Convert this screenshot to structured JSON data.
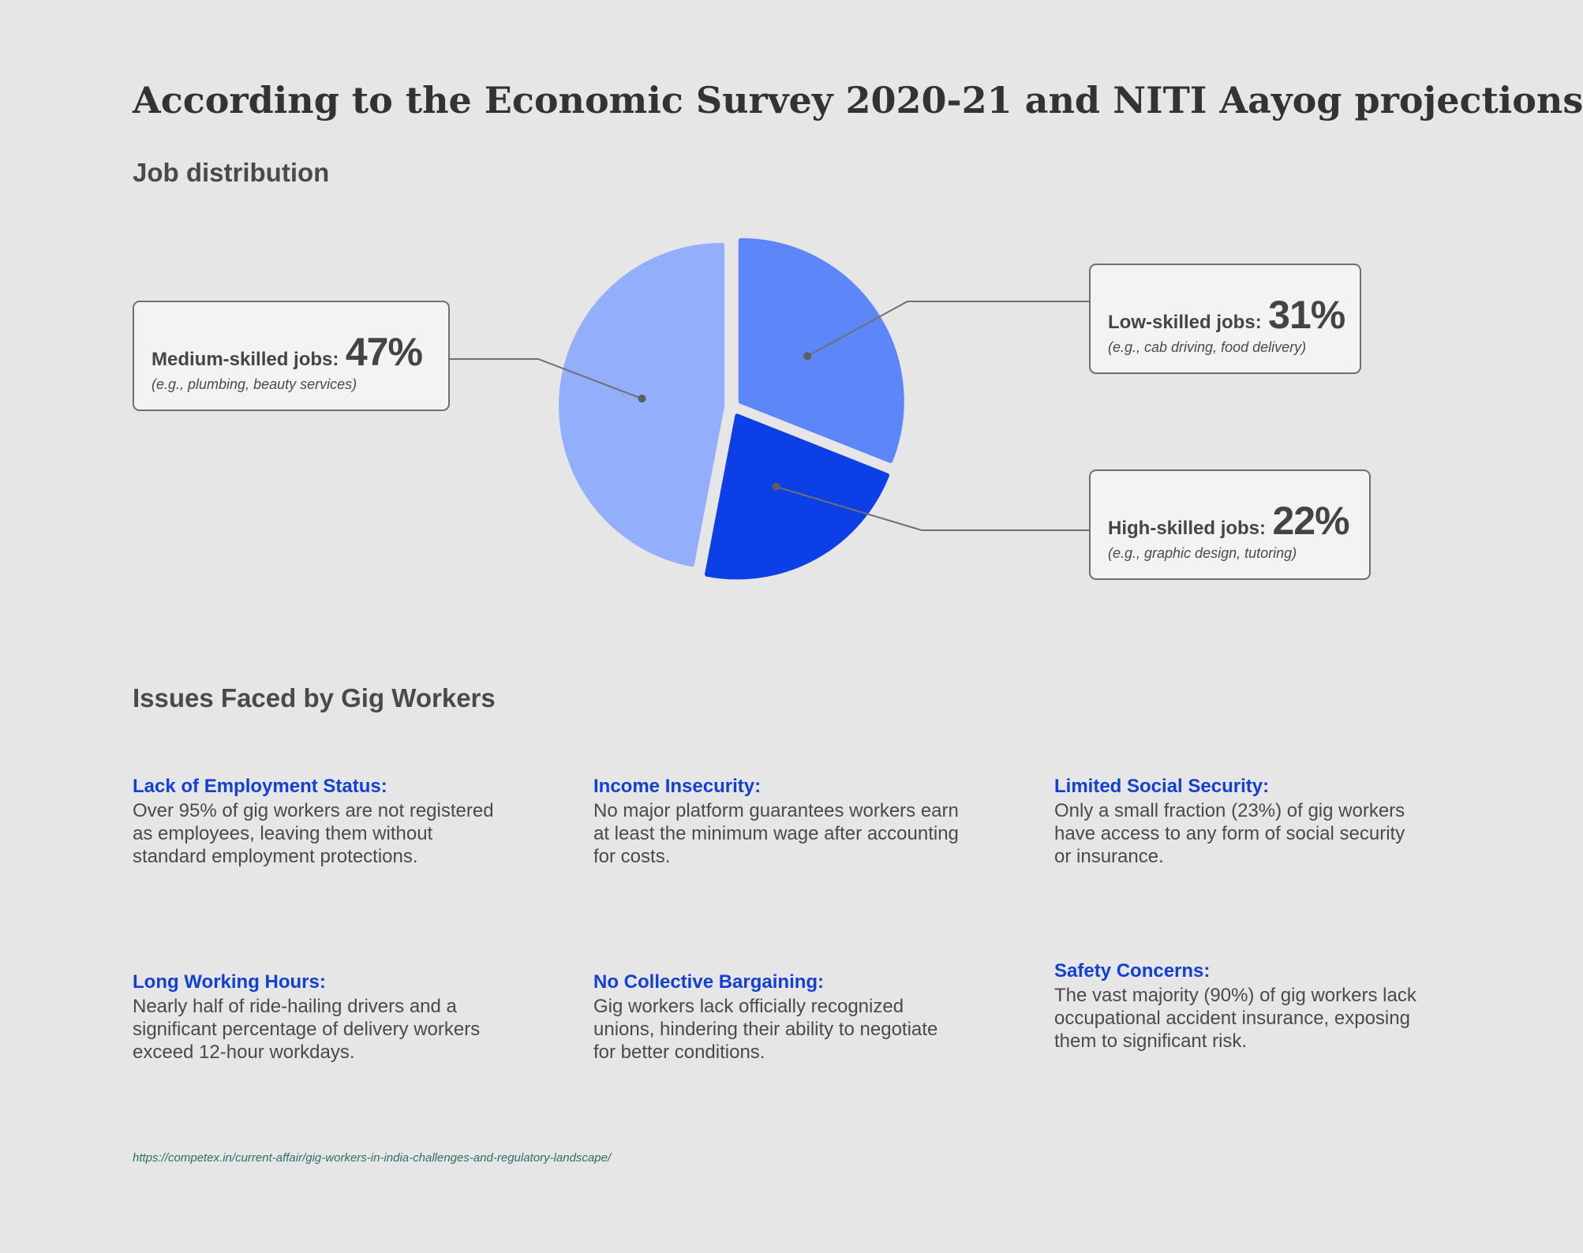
{
  "page_title": "According to the Economic Survey 2020-21 and NITI Aayog projections",
  "colors": {
    "background": "#e6e6e6",
    "heading_blue": "#1340d4",
    "medium": "#93aefa",
    "low": "#5d87f8",
    "high": "#0c40e6"
  },
  "chart_data": {
    "type": "pie",
    "title": "Job distribution",
    "slices": [
      {
        "label": "Low-skilled jobs:",
        "value": 31,
        "value_label": "31%",
        "example": "(e.g., cab driving, food delivery)",
        "color": "#5d87f8"
      },
      {
        "label": "High-skilled jobs:",
        "value": 22,
        "value_label": "22%",
        "example": "(e.g., graphic design, tutoring)",
        "color": "#0c40e6"
      },
      {
        "label": "Medium-skilled jobs:",
        "value": 47,
        "value_label": "47%",
        "example": "(e.g., plumbing, beauty services)",
        "color": "#93aefa"
      }
    ]
  },
  "issues": {
    "title": "Issues Faced by Gig Workers",
    "items": [
      {
        "heading": "Lack of Employment Status:",
        "body": "Over 95% of gig workers are not registered as employees, leaving them without standard employment protections."
      },
      {
        "heading": "Income Insecurity:",
        "body": "No major platform guarantees workers earn at least the minimum wage after accounting for costs."
      },
      {
        "heading": "Limited Social Security:",
        "body": "Only a small fraction (23%) of gig workers have access to any form of social security or insurance."
      },
      {
        "heading": "Long Working Hours:",
        "body": "Nearly half of ride-hailing drivers and a significant percentage of delivery workers exceed 12-hour workdays."
      },
      {
        "heading": "No Collective Bargaining:",
        "body": "Gig workers lack officially recognized unions, hindering their ability to negotiate for better conditions."
      },
      {
        "heading": "Safety Concerns:",
        "body": "The vast majority (90%) of gig workers lack occupational accident insurance, exposing them to significant risk."
      }
    ]
  },
  "source_url": "https://competex.in/current-affair/gig-workers-in-india-challenges-and-regulatory-landscape/"
}
